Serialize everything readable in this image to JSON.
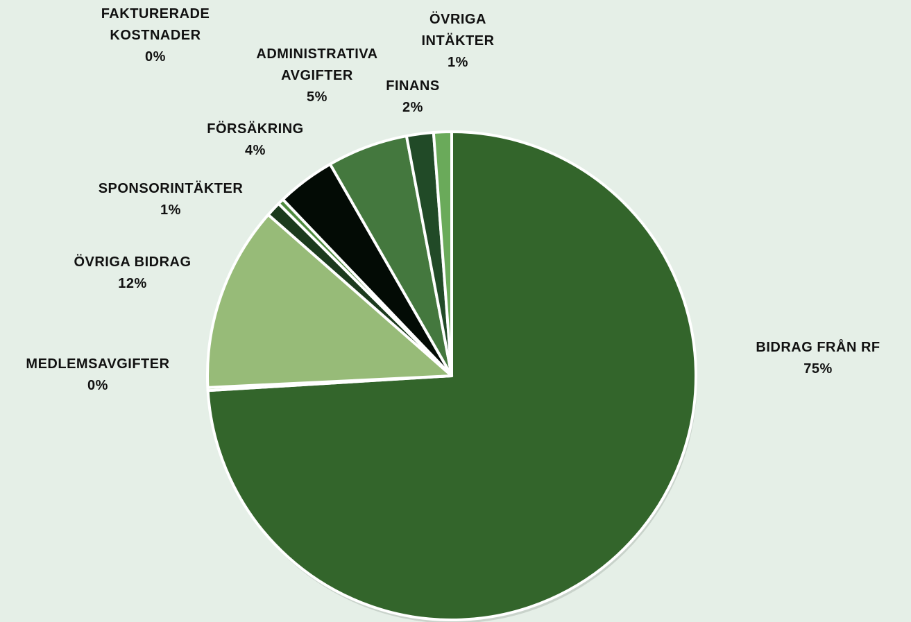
{
  "chart_data": {
    "type": "pie",
    "title": "",
    "start_angle_deg": 0,
    "direction": "clockwise",
    "slices": [
      {
        "label_lines": [
          "BIDRAG FRÅN RF"
        ],
        "pct_label": "75%",
        "value": 75.0,
        "color": "#33652b"
      },
      {
        "label_lines": [
          "MEDLEMSAVGIFTER"
        ],
        "pct_label": "0%",
        "value": 0.2,
        "color": "#7fb26a"
      },
      {
        "label_lines": [
          "ÖVRIGA BIDRAG"
        ],
        "pct_label": "12%",
        "value": 12.4,
        "color": "#97bb78"
      },
      {
        "label_lines": [
          "SPONSORINTÄKTER"
        ],
        "pct_label": "1%",
        "value": 1.0,
        "color": "#1b3a1d"
      },
      {
        "label_lines": [
          "FAKTURERADE",
          "KOSTNADER"
        ],
        "pct_label": "0%",
        "value": 0.4,
        "color": "#4e8a3e"
      },
      {
        "label_lines": [
          "FÖRSÄKRING"
        ],
        "pct_label": "4%",
        "value": 3.9,
        "color": "#030b05"
      },
      {
        "label_lines": [
          "ADMINISTRATIVA",
          "AVGIFTER"
        ],
        "pct_label": "5%",
        "value": 5.4,
        "color": "#44783e"
      },
      {
        "label_lines": [
          "FINANS"
        ],
        "pct_label": "2%",
        "value": 1.8,
        "color": "#214a27"
      },
      {
        "label_lines": [
          "ÖVRIGA",
          "INTÄKTER"
        ],
        "pct_label": "1%",
        "value": 1.2,
        "color": "#6aaa5a"
      }
    ]
  }
}
